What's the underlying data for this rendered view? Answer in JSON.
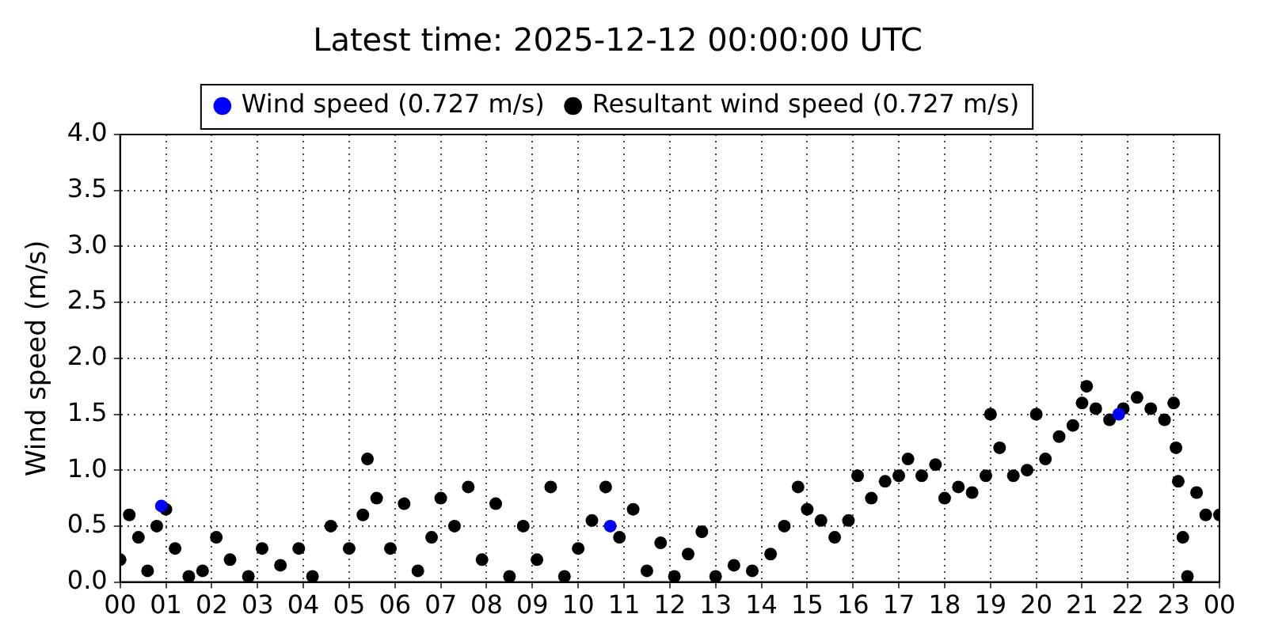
{
  "chart_data": {
    "type": "scatter",
    "title": "Latest time: 2025-12-12 00:00:00 UTC",
    "ylabel": "Wind speed (m/s)",
    "x": [
      0.0,
      0.2,
      0.4,
      0.6,
      0.8,
      1.0,
      1.2,
      1.5,
      1.8,
      2.1,
      2.4,
      2.8,
      3.1,
      3.5,
      3.9,
      4.2,
      4.6,
      5.0,
      5.3,
      5.4,
      5.6,
      5.9,
      6.2,
      6.5,
      6.8,
      7.0,
      7.3,
      7.6,
      7.9,
      8.2,
      8.5,
      8.8,
      9.1,
      9.4,
      9.7,
      10.0,
      10.3,
      10.6,
      10.9,
      11.2,
      11.5,
      11.8,
      12.1,
      12.4,
      12.7,
      13.0,
      13.4,
      13.8,
      14.2,
      14.5,
      14.8,
      15.0,
      15.3,
      15.6,
      15.9,
      16.1,
      16.4,
      16.7,
      17.0,
      17.2,
      17.5,
      17.8,
      18.0,
      18.3,
      18.6,
      18.9,
      19.0,
      19.2,
      19.5,
      19.8,
      20.0,
      20.2,
      20.5,
      20.8,
      21.0,
      21.1,
      21.3,
      21.6,
      21.9,
      22.2,
      22.5,
      22.8,
      23.0,
      23.05,
      23.1,
      23.2,
      23.3,
      23.5,
      23.7,
      24.0
    ],
    "series": [
      {
        "name": "Wind speed (0.727 m/s)",
        "color": "#0000ff",
        "x": [
          0.9,
          10.7,
          21.8
        ],
        "values": [
          0.68,
          0.5,
          1.5
        ]
      },
      {
        "name": "Resultant wind speed (0.727 m/s)",
        "color": "#000000",
        "values": [
          0.2,
          0.6,
          0.4,
          0.1,
          0.5,
          0.65,
          0.3,
          0.05,
          0.1,
          0.4,
          0.2,
          0.05,
          0.3,
          0.15,
          0.3,
          0.05,
          0.5,
          0.3,
          0.6,
          1.1,
          0.75,
          0.3,
          0.7,
          0.1,
          0.4,
          0.75,
          0.5,
          0.85,
          0.2,
          0.7,
          0.05,
          0.5,
          0.2,
          0.85,
          0.05,
          0.3,
          0.55,
          0.85,
          0.4,
          0.65,
          0.1,
          0.35,
          0.05,
          0.25,
          0.45,
          0.05,
          0.15,
          0.1,
          0.25,
          0.5,
          0.85,
          0.65,
          0.55,
          0.4,
          0.55,
          0.95,
          0.75,
          0.9,
          0.95,
          1.1,
          0.95,
          1.05,
          0.75,
          0.85,
          0.8,
          0.95,
          1.5,
          1.2,
          0.95,
          1.0,
          1.5,
          1.1,
          1.3,
          1.4,
          1.6,
          1.75,
          1.55,
          1.45,
          1.55,
          1.65,
          1.55,
          1.45,
          1.6,
          1.2,
          0.9,
          0.4,
          0.05,
          0.8,
          0.6,
          0.6
        ]
      }
    ],
    "xlim": [
      0,
      24
    ],
    "xticks": [
      {
        "value": 0,
        "label": "00"
      },
      {
        "value": 1,
        "label": "01"
      },
      {
        "value": 2,
        "label": "02"
      },
      {
        "value": 3,
        "label": "03"
      },
      {
        "value": 4,
        "label": "04"
      },
      {
        "value": 5,
        "label": "05"
      },
      {
        "value": 6,
        "label": "06"
      },
      {
        "value": 7,
        "label": "07"
      },
      {
        "value": 8,
        "label": "08"
      },
      {
        "value": 9,
        "label": "09"
      },
      {
        "value": 10,
        "label": "10"
      },
      {
        "value": 11,
        "label": "11"
      },
      {
        "value": 12,
        "label": "12"
      },
      {
        "value": 13,
        "label": "13"
      },
      {
        "value": 14,
        "label": "14"
      },
      {
        "value": 15,
        "label": "15"
      },
      {
        "value": 16,
        "label": "16"
      },
      {
        "value": 17,
        "label": "17"
      },
      {
        "value": 18,
        "label": "18"
      },
      {
        "value": 19,
        "label": "19"
      },
      {
        "value": 20,
        "label": "20"
      },
      {
        "value": 21,
        "label": "21"
      },
      {
        "value": 22,
        "label": "22"
      },
      {
        "value": 23,
        "label": "23"
      },
      {
        "value": 24,
        "label": "00"
      }
    ],
    "ylim": [
      0,
      4
    ],
    "yticks": [
      {
        "value": 0,
        "label": "0.0"
      },
      {
        "value": 0.5,
        "label": "0.5"
      },
      {
        "value": 1,
        "label": "1.0"
      },
      {
        "value": 1.5,
        "label": "1.5"
      },
      {
        "value": 2,
        "label": "2.0"
      },
      {
        "value": 2.5,
        "label": "2.5"
      },
      {
        "value": 3,
        "label": "3.0"
      },
      {
        "value": 3.5,
        "label": "3.5"
      },
      {
        "value": 4,
        "label": "4.0"
      }
    ],
    "grid": true,
    "legend": "top",
    "marker": "circle"
  }
}
